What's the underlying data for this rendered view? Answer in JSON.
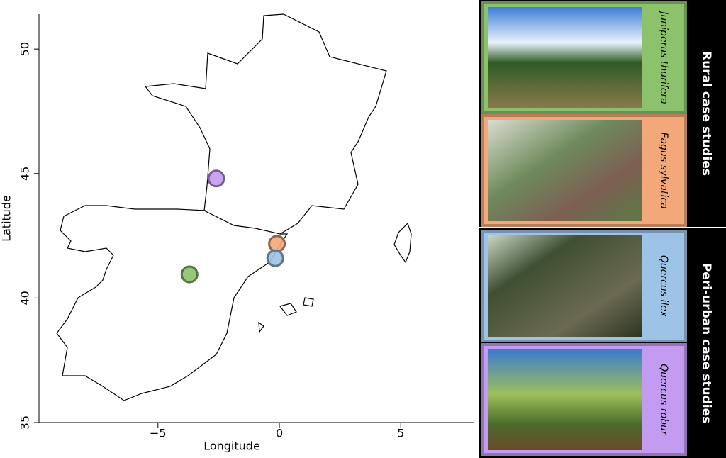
{
  "chart_data": {
    "type": "scatter",
    "x_label": "Longitude",
    "y_label": "Latitude",
    "xlim": [
      -9.9,
      8
    ],
    "ylim": [
      35,
      51.4
    ],
    "xticks": [
      {
        "value": -5,
        "label": "−5"
      },
      0,
      5
    ],
    "yticks": [
      35,
      40,
      45,
      50
    ],
    "series": [
      {
        "name": "Juniperus thurifera",
        "color": "#8cc26b",
        "x": [
          -3.7
        ],
        "values": [
          40.95
        ]
      },
      {
        "name": "Fagus sylvatica",
        "color": "#f2a878",
        "x": [
          -0.1
        ],
        "values": [
          42.18
        ]
      },
      {
        "name": "Quercus ilex",
        "color": "#9dc3e6",
        "x": [
          -0.17
        ],
        "values": [
          41.6
        ]
      },
      {
        "name": "Quercus robur",
        "color": "#c39bf0",
        "x": [
          -2.6
        ],
        "values": [
          44.8
        ]
      }
    ]
  },
  "groups": [
    "Rural case studies",
    "Peri-urban case studies"
  ]
}
